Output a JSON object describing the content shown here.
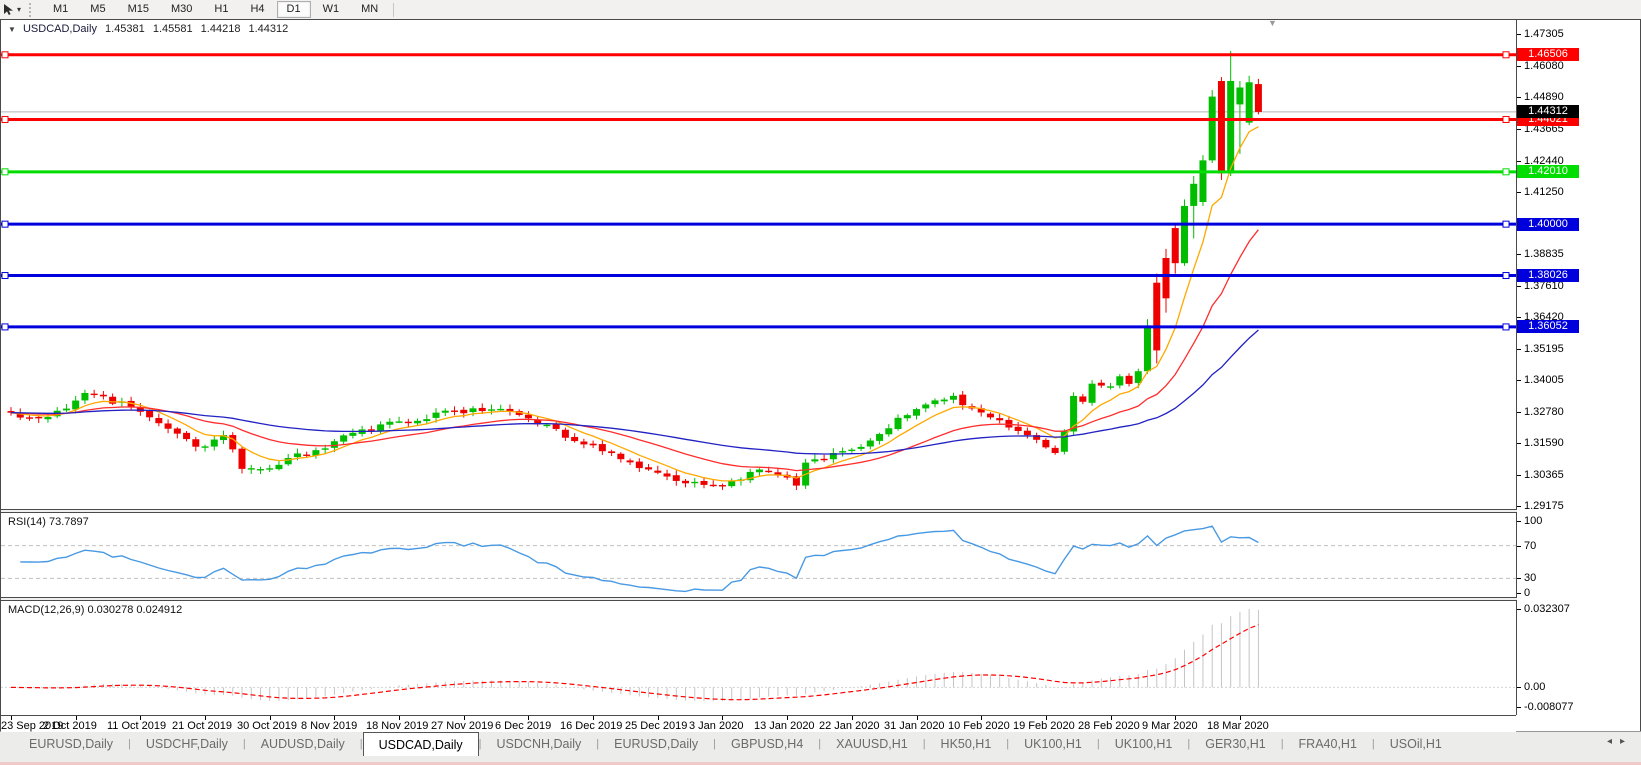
{
  "toolbar": {
    "timeframes": [
      "M1",
      "M5",
      "M15",
      "M30",
      "H1",
      "H4",
      "D1",
      "W1",
      "MN"
    ],
    "active_timeframe": "D1",
    "tool_icon": "crosshair-cursor-tool"
  },
  "chart": {
    "title_symbol": "USDCAD,Daily",
    "ohlc": {
      "open": "1.45381",
      "high": "1.45581",
      "low": "1.44218",
      "close": "1.44312"
    }
  },
  "chart_data": {
    "type": "candlestick",
    "symbol": "USDCAD",
    "timeframe": "Daily",
    "price_range": [
      1.29175,
      1.47305
    ],
    "y_axis_ticks": [
      "1.47305",
      "1.46080",
      "1.44890",
      "1.43665",
      "1.42440",
      "1.41250",
      "1.38835",
      "1.37610",
      "1.36420",
      "1.35195",
      "1.34005",
      "1.32780",
      "1.31590",
      "1.30365",
      "1.29175"
    ],
    "levels": [
      {
        "price": 1.46506,
        "color": "#ff0000",
        "type": "resistance"
      },
      {
        "price": 1.44021,
        "color": "#ff0000",
        "type": "resistance"
      },
      {
        "price": 1.4201,
        "color": "#00dd00",
        "type": "level"
      },
      {
        "price": 1.4,
        "color": "#0000dd",
        "type": "support"
      },
      {
        "price": 1.38026,
        "color": "#0000dd",
        "type": "support"
      },
      {
        "price": 1.36052,
        "color": "#0000dd",
        "type": "support"
      }
    ],
    "current_price": 1.44312,
    "dates": [
      "23 Sep 2019",
      "2 Oct 2019",
      "11 Oct 2019",
      "21 Oct 2019",
      "30 Oct 2019",
      "8 Nov 2019",
      "18 Nov 2019",
      "27 Nov 2019",
      "6 Dec 2019",
      "16 Dec 2019",
      "25 Dec 2019",
      "3 Jan 2020",
      "13 Jan 2020",
      "22 Jan 2020",
      "31 Jan 2020",
      "10 Feb 2020",
      "19 Feb 2020",
      "28 Feb 2020",
      "9 Mar 2020",
      "18 Mar 2020"
    ],
    "bars_per_label": 7,
    "bar_count": 136,
    "close_anchors": [
      [
        0,
        1.327
      ],
      [
        3,
        1.3245
      ],
      [
        6,
        1.329
      ],
      [
        8,
        1.336
      ],
      [
        10,
        1.333
      ],
      [
        13,
        1.33
      ],
      [
        16,
        1.3225
      ],
      [
        19,
        1.3165
      ],
      [
        21,
        1.314
      ],
      [
        23,
        1.319
      ],
      [
        25,
        1.306
      ],
      [
        27,
        1.305
      ],
      [
        30,
        1.31
      ],
      [
        33,
        1.3125
      ],
      [
        36,
        1.3195
      ],
      [
        40,
        1.3225
      ],
      [
        44,
        1.3255
      ],
      [
        48,
        1.328
      ],
      [
        52,
        1.3295
      ],
      [
        55,
        1.327
      ],
      [
        58,
        1.3225
      ],
      [
        61,
        1.3165
      ],
      [
        64,
        1.3135
      ],
      [
        67,
        1.309
      ],
      [
        70,
        1.304
      ],
      [
        73,
        1.301
      ],
      [
        75,
        1.299
      ],
      [
        77,
        1.3005
      ],
      [
        79,
        1.303
      ],
      [
        81,
        1.3065
      ],
      [
        83,
        1.3045
      ],
      [
        85,
        1.2995
      ],
      [
        86,
        1.309
      ],
      [
        88,
        1.3105
      ],
      [
        91,
        1.3125
      ],
      [
        94,
        1.319
      ],
      [
        96,
        1.325
      ],
      [
        98,
        1.329
      ],
      [
        100,
        1.332
      ],
      [
        102,
        1.333
      ],
      [
        104,
        1.33
      ],
      [
        106,
        1.326
      ],
      [
        108,
        1.3215
      ],
      [
        110,
        1.3195
      ],
      [
        112,
        1.315
      ],
      [
        113,
        1.313
      ],
      [
        114,
        1.3205
      ],
      [
        115,
        1.334
      ],
      [
        116,
        1.332
      ],
      [
        117,
        1.3395
      ],
      [
        118,
        1.337
      ],
      [
        119,
        1.3385
      ],
      [
        120,
        1.3405
      ],
      [
        121,
        1.339
      ]
    ],
    "tail_ohlc": [
      [
        1.339,
        1.3445,
        1.337,
        1.3435
      ],
      [
        1.3435,
        1.3635,
        1.3425,
        1.3605
      ],
      [
        1.3775,
        1.381,
        1.3465,
        1.3515
      ],
      [
        1.387,
        1.3905,
        1.366,
        1.3715
      ],
      [
        1.3985,
        1.4005,
        1.381,
        1.385
      ],
      [
        1.385,
        1.4095,
        1.384,
        1.407
      ],
      [
        1.407,
        1.4185,
        1.3945,
        1.4155
      ],
      [
        1.4085,
        1.4265,
        1.407,
        1.4245
      ],
      [
        1.4245,
        1.4515,
        1.4235,
        1.449
      ],
      [
        1.455,
        1.4565,
        1.417,
        1.4195
      ],
      [
        1.4195,
        1.4665,
        1.4185,
        1.455
      ],
      [
        1.446,
        1.455,
        1.427,
        1.4525
      ],
      [
        1.439,
        1.457,
        1.438,
        1.4545
      ],
      [
        1.45381,
        1.45581,
        1.44218,
        1.44312
      ]
    ],
    "colors": {
      "bull": "#00bd00",
      "bear": "#ee0000",
      "current_price_line": "#b4b4b4",
      "current_price_badge": "#000000"
    },
    "moving_averages": [
      {
        "name": "ma-fast",
        "period": 7,
        "color": "#ffa800"
      },
      {
        "name": "ma-mid",
        "period": 21,
        "color": "#ff2d2d"
      },
      {
        "name": "ma-slow",
        "period": 55,
        "color": "#2121c4"
      }
    ],
    "rsi": {
      "label": "RSI(14) 73.7897",
      "period": 14,
      "current": 73.7897,
      "overbought": 70,
      "oversold": 30,
      "scale_ticks": [
        "100",
        "70",
        "30",
        "0"
      ],
      "color": "#4899e3"
    },
    "macd": {
      "label": "MACD(12,26,9) 0.030278 0.024912",
      "fast": 12,
      "slow": 26,
      "signal_period": 9,
      "main_value": 0.030278,
      "signal_value": 0.024912,
      "range": [
        -0.008077,
        0.032307
      ],
      "scale_ticks": [
        "0.032307",
        "0.00",
        "-0.008077"
      ],
      "histogram_color": "#c4c4c4",
      "signal_color": "#ff0000"
    }
  },
  "tabs": {
    "items": [
      "EURUSD,Daily",
      "USDCHF,Daily",
      "AUDUSD,Daily",
      "USDCAD,Daily",
      "USDCNH,Daily",
      "EURUSD,Daily",
      "GBPUSD,H4",
      "XAUUSD,H1",
      "HK50,H1",
      "UK100,H1",
      "UK100,H1",
      "GER30,H1",
      "FRA40,H1",
      "USOil,H1"
    ],
    "active_index": 3,
    "scroll_left_icon": "◂",
    "scroll_right_icon": "▸"
  }
}
